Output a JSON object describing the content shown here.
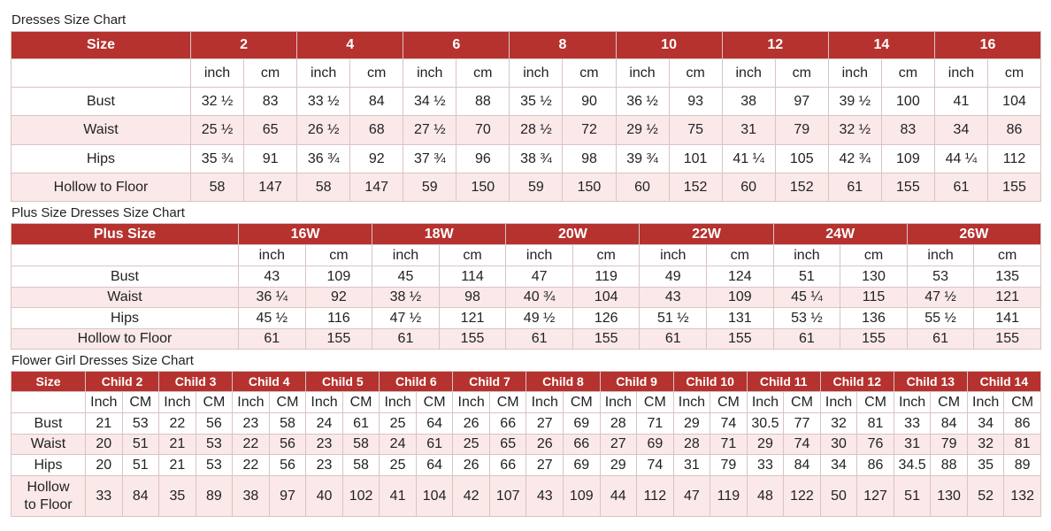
{
  "dresses": {
    "title": "Dresses Size Chart",
    "size_header": "Size",
    "sizes": [
      "2",
      "4",
      "6",
      "8",
      "10",
      "12",
      "14",
      "16"
    ],
    "units": [
      "inch",
      "cm"
    ],
    "rows": [
      {
        "label": "Bust",
        "values": [
          "32 ½",
          "83",
          "33 ½",
          "84",
          "34 ½",
          "88",
          "35 ½",
          "90",
          "36 ½",
          "93",
          "38",
          "97",
          "39 ½",
          "100",
          "41",
          "104"
        ]
      },
      {
        "label": "Waist",
        "values": [
          "25 ½",
          "65",
          "26 ½",
          "68",
          "27 ½",
          "70",
          "28 ½",
          "72",
          "29 ½",
          "75",
          "31",
          "79",
          "32 ½",
          "83",
          "34",
          "86"
        ]
      },
      {
        "label": "Hips",
        "values": [
          "35 ¾",
          "91",
          "36 ¾",
          "92",
          "37 ¾",
          "96",
          "38 ¾",
          "98",
          "39 ¾",
          "101",
          "41 ¼",
          "105",
          "42 ¾",
          "109",
          "44 ¼",
          "112"
        ]
      },
      {
        "label": "Hollow to Floor",
        "values": [
          "58",
          "147",
          "58",
          "147",
          "59",
          "150",
          "59",
          "150",
          "60",
          "152",
          "60",
          "152",
          "61",
          "155",
          "61",
          "155"
        ]
      }
    ]
  },
  "plus": {
    "title": "Plus Size Dresses Size Chart",
    "size_header": "Plus Size",
    "sizes": [
      "16W",
      "18W",
      "20W",
      "22W",
      "24W",
      "26W"
    ],
    "units": [
      "inch",
      "cm"
    ],
    "rows": [
      {
        "label": "Bust",
        "values": [
          "43",
          "109",
          "45",
          "114",
          "47",
          "119",
          "49",
          "124",
          "51",
          "130",
          "53",
          "135"
        ]
      },
      {
        "label": "Waist",
        "values": [
          "36 ¼",
          "92",
          "38 ½",
          "98",
          "40 ¾",
          "104",
          "43",
          "109",
          "45 ¼",
          "115",
          "47 ½",
          "121"
        ]
      },
      {
        "label": "Hips",
        "values": [
          "45 ½",
          "116",
          "47 ½",
          "121",
          "49 ½",
          "126",
          "51 ½",
          "131",
          "53 ½",
          "136",
          "55 ½",
          "141"
        ]
      },
      {
        "label": "Hollow to Floor",
        "values": [
          "61",
          "155",
          "61",
          "155",
          "61",
          "155",
          "61",
          "155",
          "61",
          "155",
          "61",
          "155"
        ]
      }
    ]
  },
  "flower": {
    "title": "Flower Girl Dresses Size Chart",
    "size_header": "Size",
    "sizes": [
      "Child 2",
      "Child 3",
      "Child 4",
      "Child 5",
      "Child 6",
      "Child 7",
      "Child 8",
      "Child 9",
      "Child 10",
      "Child 11",
      "Child 12",
      "Child 13",
      "Child 14"
    ],
    "units": [
      "Inch",
      "CM"
    ],
    "rows": [
      {
        "label": "Bust",
        "values": [
          "21",
          "53",
          "22",
          "56",
          "23",
          "58",
          "24",
          "61",
          "25",
          "64",
          "26",
          "66",
          "27",
          "69",
          "28",
          "71",
          "29",
          "74",
          "30.5",
          "77",
          "32",
          "81",
          "33",
          "84",
          "34",
          "86"
        ]
      },
      {
        "label": "Waist",
        "values": [
          "20",
          "51",
          "21",
          "53",
          "22",
          "56",
          "23",
          "58",
          "24",
          "61",
          "25",
          "65",
          "26",
          "66",
          "27",
          "69",
          "28",
          "71",
          "29",
          "74",
          "30",
          "76",
          "31",
          "79",
          "32",
          "81"
        ]
      },
      {
        "label": "Hips",
        "values": [
          "20",
          "51",
          "21",
          "53",
          "22",
          "56",
          "23",
          "58",
          "25",
          "64",
          "26",
          "66",
          "27",
          "69",
          "29",
          "74",
          "31",
          "79",
          "33",
          "84",
          "34",
          "86",
          "34.5",
          "88",
          "35",
          "89"
        ]
      },
      {
        "label": "Hollow\nto Floor",
        "values": [
          "33",
          "84",
          "35",
          "89",
          "38",
          "97",
          "40",
          "102",
          "41",
          "104",
          "42",
          "107",
          "43",
          "109",
          "44",
          "112",
          "47",
          "119",
          "48",
          "122",
          "50",
          "127",
          "51",
          "130",
          "52",
          "132"
        ]
      }
    ]
  }
}
